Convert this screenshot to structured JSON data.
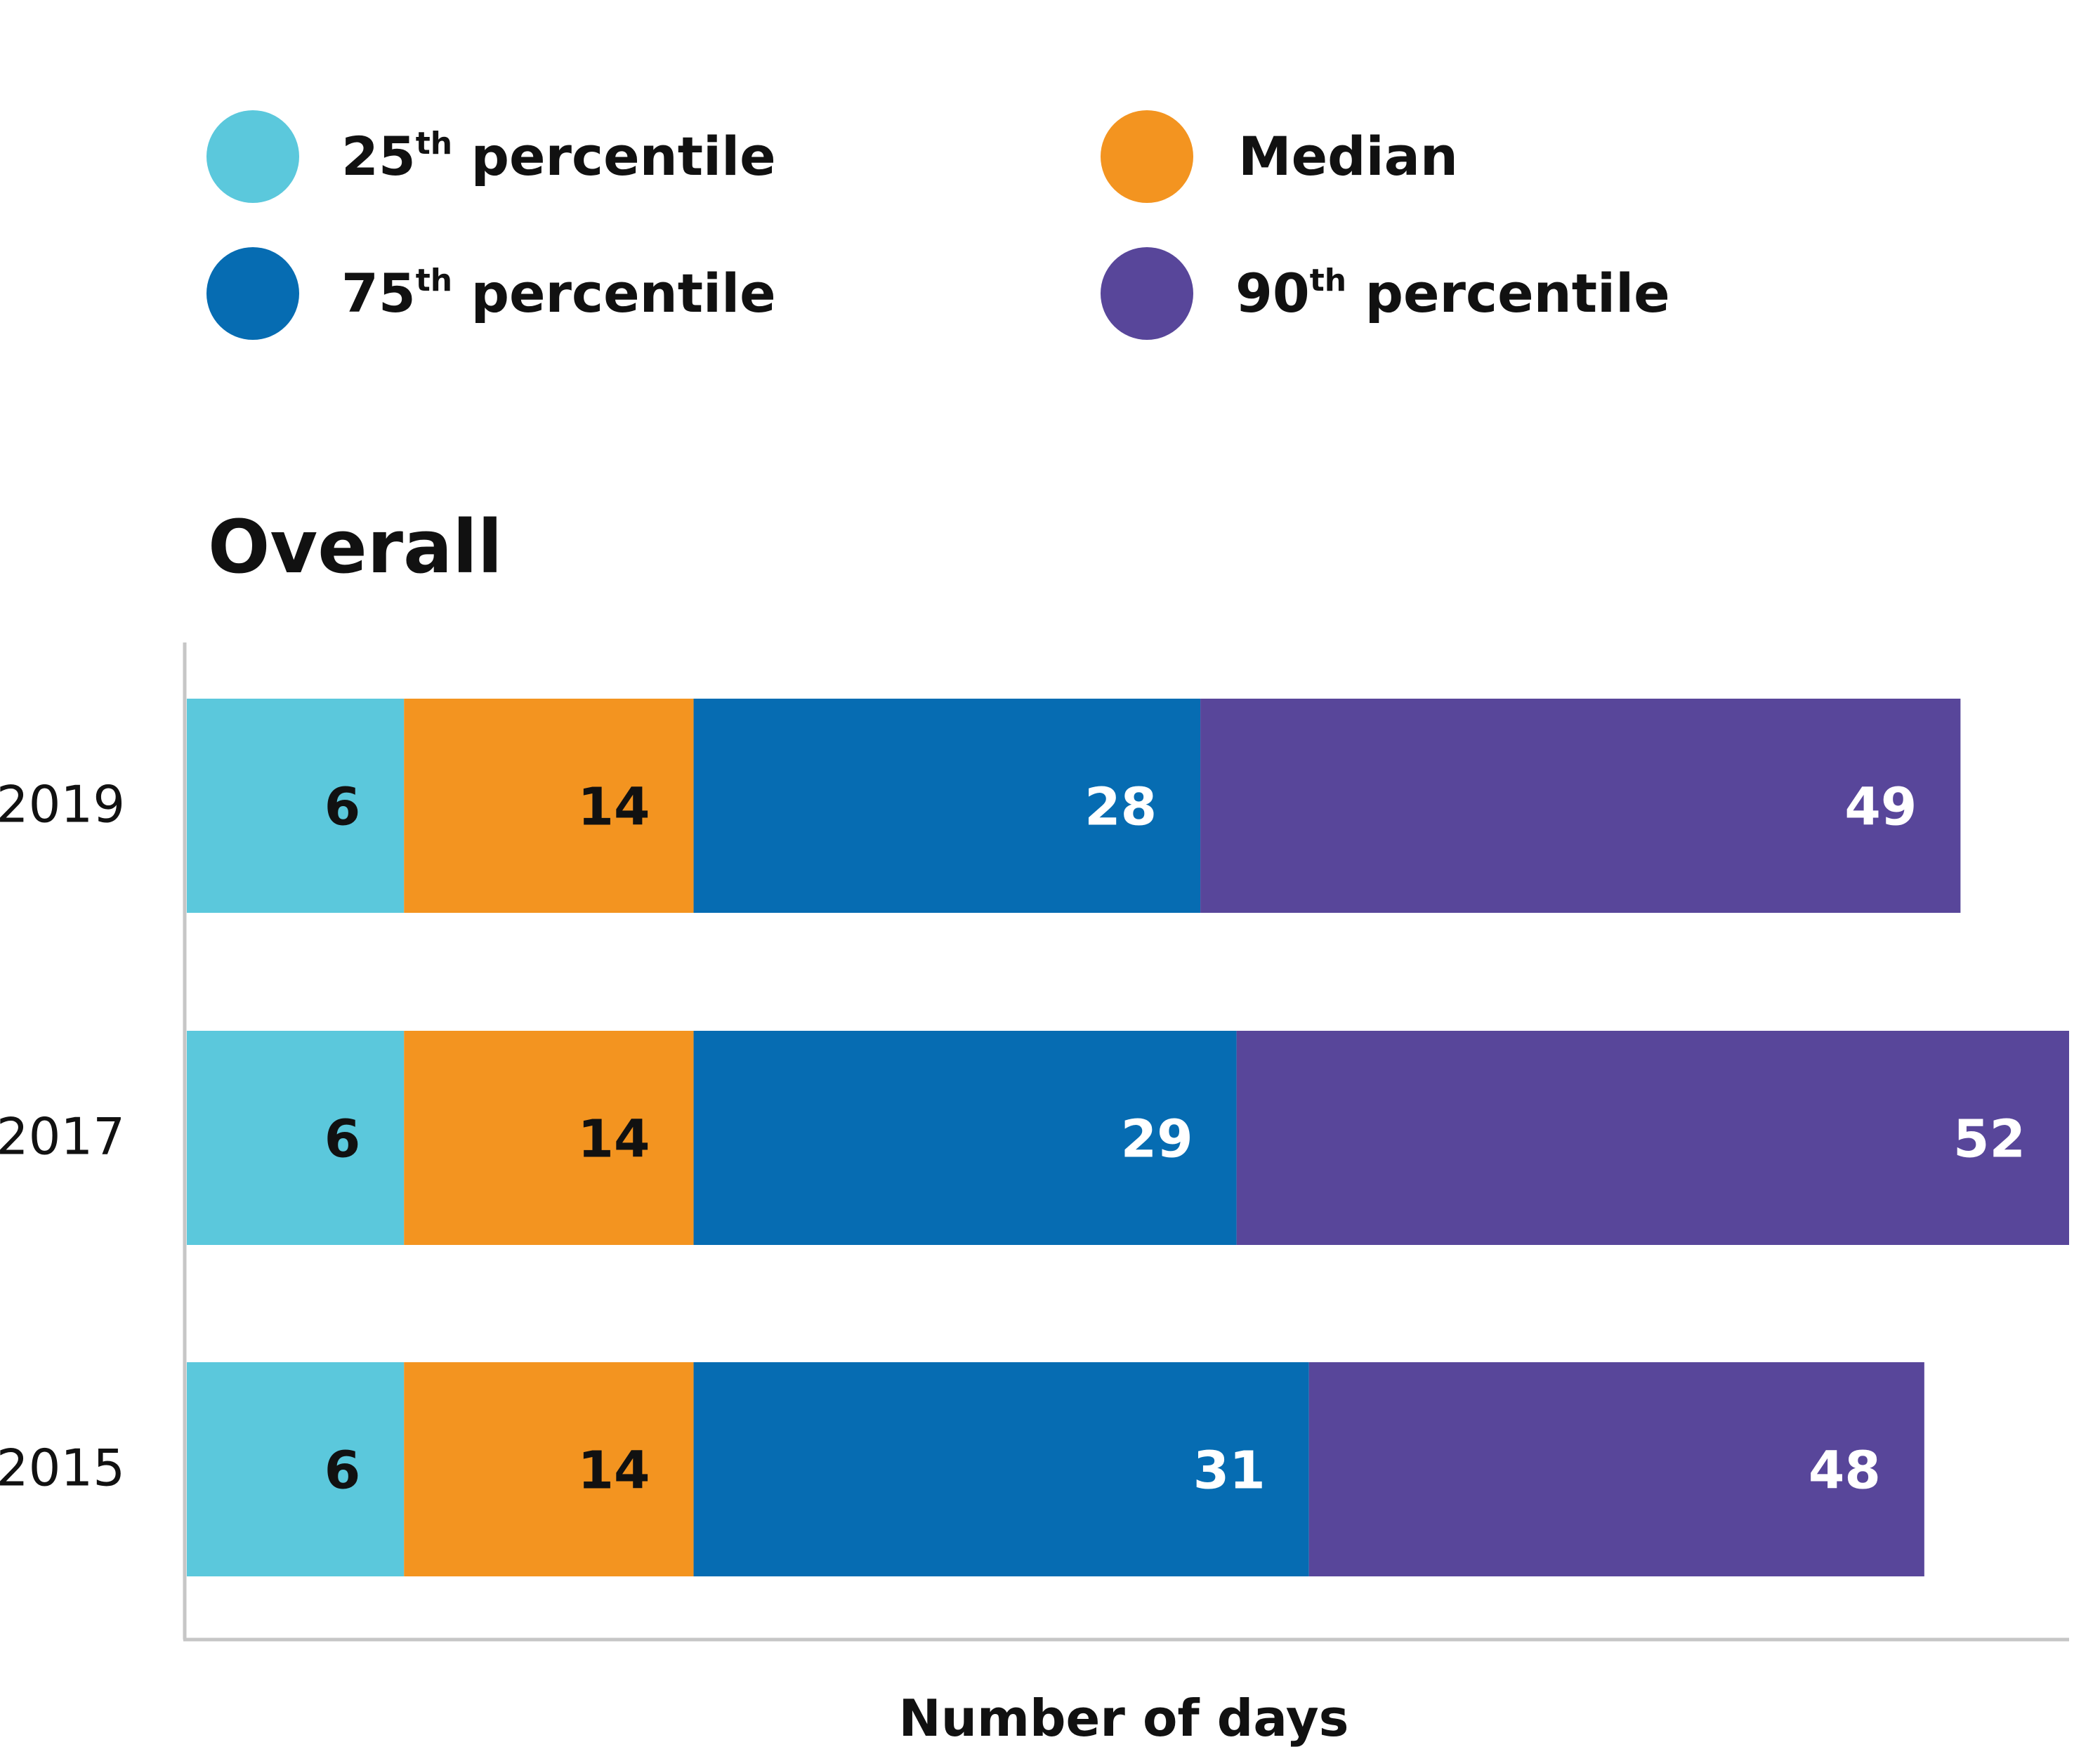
{
  "chart_data": {
    "type": "bar",
    "orientation": "horizontal",
    "title": "Overall",
    "xlabel": "Number of days",
    "ylabel": "",
    "categories": [
      "2019",
      "2017",
      "2015"
    ],
    "series": [
      {
        "name": "25th percentile",
        "name_parts": [
          "25",
          "th",
          " percentile"
        ],
        "color": "#5BC8DC",
        "label_color": "#111111",
        "values": [
          6,
          6,
          6
        ]
      },
      {
        "name": "Median",
        "name_parts": [
          "Median",
          "",
          ""
        ],
        "color": "#F39420",
        "label_color": "#111111",
        "values": [
          14,
          14,
          14
        ]
      },
      {
        "name": "75th percentile",
        "name_parts": [
          "75",
          "th",
          " percentile"
        ],
        "color": "#066CB2",
        "label_color": "#ffffff",
        "values": [
          28,
          29,
          31
        ]
      },
      {
        "name": "90th percentile",
        "name_parts": [
          "90",
          "th",
          " percentile"
        ],
        "color": "#58469A",
        "label_color": "#ffffff",
        "values": [
          49,
          52,
          48
        ]
      }
    ],
    "xlim": [
      0,
      52
    ],
    "grid": false,
    "legend_position": "top",
    "axis_color": "#c6c6c6"
  }
}
